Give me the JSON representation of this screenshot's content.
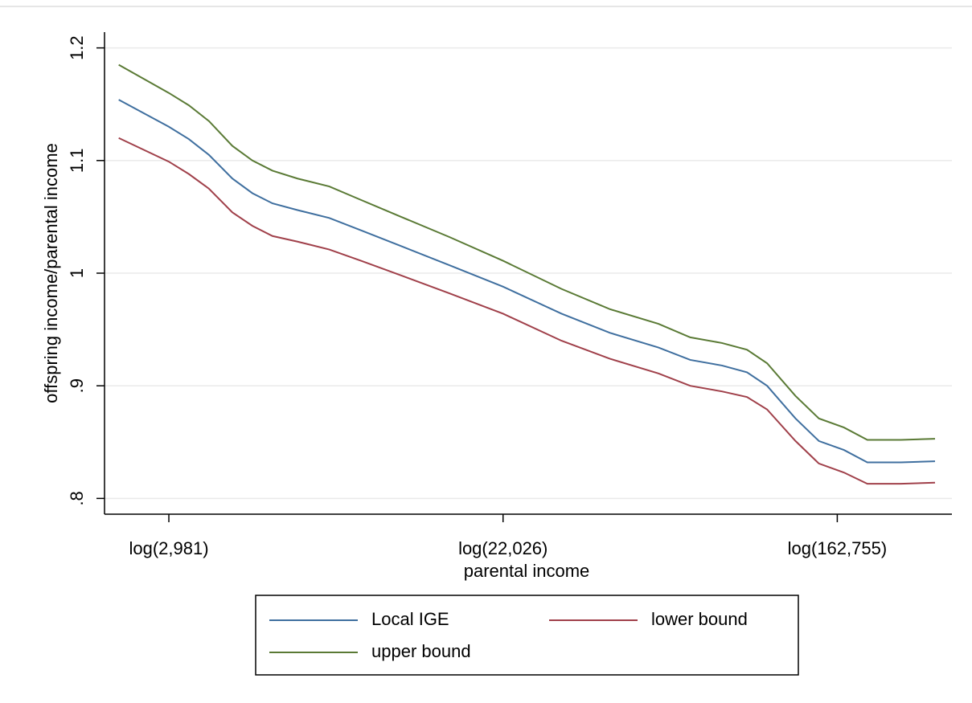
{
  "chart_data": {
    "type": "line",
    "y_label": "offspring income/parental income",
    "x_label": "parental income",
    "x": [
      7.7,
      8.0,
      8.12,
      8.24,
      8.38,
      8.5,
      8.62,
      8.77,
      8.96,
      9.15,
      9.39,
      9.68,
      10.0,
      10.35,
      10.64,
      10.93,
      11.12,
      11.31,
      11.46,
      11.58,
      11.75,
      11.89,
      12.04,
      12.18,
      12.38,
      12.585
    ],
    "series": [
      {
        "name": "Local IGE",
        "color": "#3f6f9f",
        "values": [
          1.154,
          1.13,
          1.119,
          1.105,
          1.084,
          1.071,
          1.062,
          1.056,
          1.049,
          1.038,
          1.024,
          1.007,
          0.988,
          0.964,
          0.947,
          0.934,
          0.923,
          0.918,
          0.912,
          0.9,
          0.871,
          0.851,
          0.843,
          0.832,
          0.832,
          0.833
        ]
      },
      {
        "name": "lower bound",
        "color": "#a0404a",
        "values": [
          1.12,
          1.099,
          1.088,
          1.075,
          1.054,
          1.042,
          1.033,
          1.028,
          1.021,
          1.011,
          0.998,
          0.982,
          0.964,
          0.94,
          0.924,
          0.911,
          0.9,
          0.895,
          0.89,
          0.879,
          0.851,
          0.831,
          0.823,
          0.813,
          0.813,
          0.814
        ]
      },
      {
        "name": "upper bound",
        "color": "#5a7a35",
        "values": [
          1.185,
          1.16,
          1.149,
          1.135,
          1.113,
          1.1,
          1.091,
          1.084,
          1.077,
          1.065,
          1.05,
          1.032,
          1.011,
          0.986,
          0.968,
          0.955,
          0.943,
          0.938,
          0.932,
          0.92,
          0.891,
          0.871,
          0.863,
          0.852,
          0.852,
          0.853
        ]
      }
    ],
    "xlim": [
      7.615,
      12.686
    ],
    "xticks": [
      {
        "value": 8,
        "label": "log(2,981)"
      },
      {
        "value": 10,
        "label": "log(22,026)"
      },
      {
        "value": 12,
        "label": "log(162,755)"
      }
    ],
    "ylim": [
      0.786,
      1.214
    ],
    "yticks": [
      {
        "value": 0.8,
        "label": ".8"
      },
      {
        "value": 0.9,
        "label": ".9"
      },
      1,
      1.1,
      1.2
    ],
    "grid": true,
    "legend_position": "bottom"
  }
}
